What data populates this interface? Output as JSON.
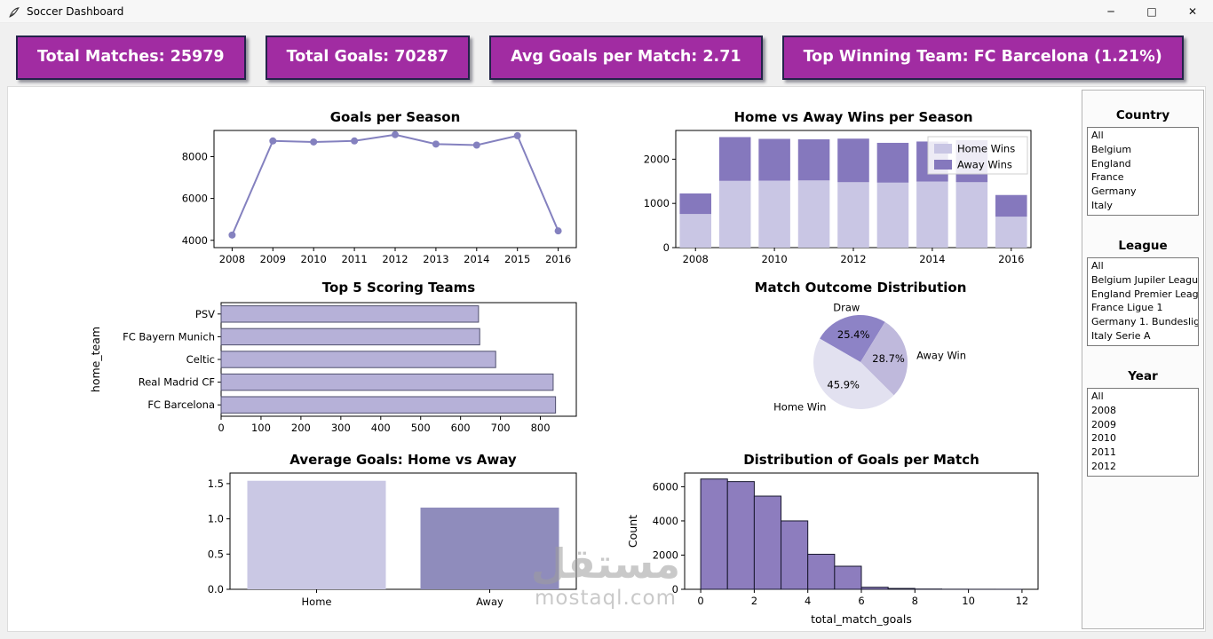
{
  "window": {
    "title": "Soccer Dashboard",
    "controls": {
      "minimize": "─",
      "maximize": "□",
      "close": "✕"
    }
  },
  "stats": [
    {
      "label": "Total Matches: 25979"
    },
    {
      "label": "Total Goals: 70287"
    },
    {
      "label": "Avg Goals per Match: 2.71"
    },
    {
      "label": "Top Winning Team: FC Barcelona (1.21%)"
    }
  ],
  "filters": {
    "country": {
      "title": "Country",
      "items": [
        "All",
        "Belgium",
        "England",
        "France",
        "Germany",
        "Italy"
      ]
    },
    "league": {
      "title": "League",
      "items": [
        "All",
        "Belgium Jupiler League",
        "England Premier League",
        "France Ligue 1",
        "Germany 1. Bundesliga",
        "Italy Serie A"
      ]
    },
    "year": {
      "title": "Year",
      "items": [
        "All",
        "2008",
        "2009",
        "2010",
        "2011",
        "2012"
      ]
    }
  },
  "watermark": {
    "arabic": "مستقل",
    "latin": "mostaql.com"
  },
  "colors": {
    "card_bg": "#a12ca2",
    "card_border": "#23234a",
    "accent_light": "#c9c6e4",
    "accent_medium": "#8f86c4"
  },
  "chart_data": [
    {
      "type": "line",
      "title": "Goals per Season",
      "x": [
        "2008",
        "2009",
        "2010",
        "2011",
        "2012",
        "2013",
        "2014",
        "2015",
        "2016"
      ],
      "values": [
        4250,
        8750,
        8700,
        8750,
        9050,
        8600,
        8550,
        9000,
        4450
      ],
      "yticks": [
        4000,
        6000,
        8000
      ],
      "ytick_labels": [
        "4000",
        "6000",
        "8000"
      ],
      "ylim": [
        3650,
        9250
      ],
      "color": "#8481bf"
    },
    {
      "type": "stacked_bar",
      "title": "Home vs Away Wins per Season",
      "categories": [
        "2008",
        "2009",
        "2010",
        "2011",
        "2012",
        "2013",
        "2014",
        "2015",
        "2016"
      ],
      "series": [
        {
          "name": "Home Wins",
          "color": "#c9c6e4",
          "values": [
            760,
            1510,
            1515,
            1520,
            1480,
            1470,
            1495,
            1480,
            700
          ]
        },
        {
          "name": "Away Wins",
          "color": "#8578bd",
          "values": [
            465,
            990,
            945,
            930,
            985,
            900,
            905,
            950,
            490
          ]
        }
      ],
      "yticks": [
        0,
        1000,
        2000
      ],
      "ytick_labels": [
        "0",
        "1000",
        "2000"
      ],
      "ylim": [
        0,
        2650
      ],
      "xticks_shown": [
        "2008",
        "2010",
        "2012",
        "2014",
        "2016"
      ],
      "legend_position": "upper right"
    },
    {
      "type": "hbar",
      "title": "Top 5 Scoring Teams",
      "ylabel": "home_team",
      "categories": [
        "PSV",
        "FC Bayern Munich",
        "Celtic",
        "Real Madrid CF",
        "FC Barcelona"
      ],
      "values": [
        645,
        648,
        688,
        832,
        838
      ],
      "xticks": [
        0,
        100,
        200,
        300,
        400,
        500,
        600,
        700,
        800
      ],
      "xlim": [
        0,
        890
      ],
      "color": "#b6b1d8",
      "edge_color": "#50506e"
    },
    {
      "type": "pie",
      "title": "Match Outcome Distribution",
      "start_angle": 150,
      "slices": [
        {
          "label": "Draw",
          "pct": 25.4,
          "color": "#8d83c6"
        },
        {
          "label": "Away Win",
          "pct": 28.7,
          "color": "#bfb9dc"
        },
        {
          "label": "Home Win",
          "pct": 45.9,
          "color": "#e2e1f0"
        }
      ]
    },
    {
      "type": "bar",
      "title": "Average Goals: Home vs Away",
      "categories": [
        "Home",
        "Away"
      ],
      "values": [
        1.54,
        1.16
      ],
      "colors": [
        "#cac8e4",
        "#8f8cbc"
      ],
      "yticks": [
        0,
        0.5,
        1.0,
        1.5
      ],
      "ytick_labels": [
        "0.0",
        "0.5",
        "1.0",
        "1.5"
      ],
      "ylim": [
        0,
        1.65
      ]
    },
    {
      "type": "histogram",
      "title": "Distribution of Goals per Match",
      "xlabel": "total_match_goals",
      "ylabel": "Count",
      "bin_width": 1,
      "counts": [
        6450,
        6300,
        5450,
        4000,
        2050,
        1350,
        120,
        50,
        15,
        5,
        2,
        1
      ],
      "xticks": [
        0,
        2,
        4,
        6,
        8,
        10,
        12
      ],
      "yticks": [
        0,
        2000,
        4000,
        6000
      ],
      "ytick_labels": [
        "0",
        "2000",
        "4000",
        "6000"
      ],
      "xlim": [
        -0.6,
        12.6
      ],
      "ylim": [
        0,
        6800
      ],
      "color": "#8d7dbe",
      "edge_color": "#17172e"
    }
  ]
}
